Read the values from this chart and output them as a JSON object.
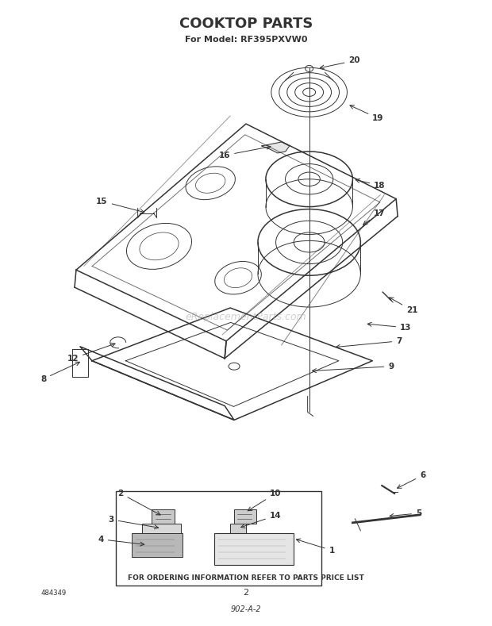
{
  "title": "COOKTOP PARTS",
  "subtitle": "For Model: RF395PXVW0",
  "footer_text": "FOR ORDERING INFORMATION REFER TO PARTS PRICE LIST",
  "page_number": "2",
  "doc_number": "902-A-2",
  "part_number_stamp": "484349",
  "watermark": "eReplacementParts.com",
  "background_color": "#ffffff",
  "line_color": "#333333"
}
